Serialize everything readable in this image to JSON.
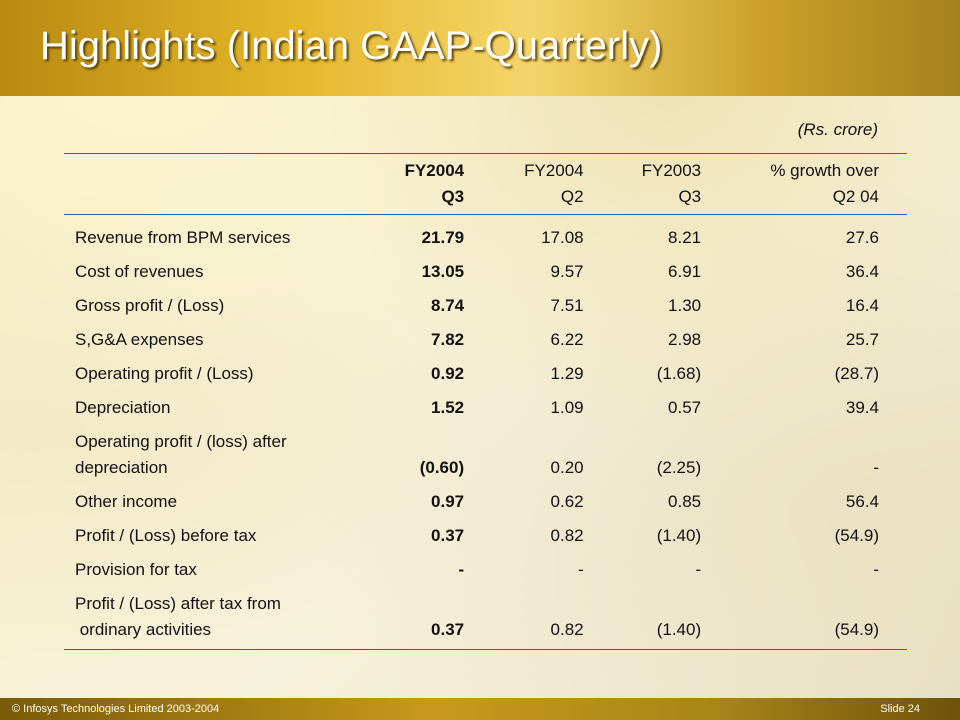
{
  "slide": {
    "title": "Highlights (Indian GAAP-Quarterly)",
    "units": "(Rs. crore)",
    "columns": [
      {
        "line1": "FY2004",
        "line2": "Q3"
      },
      {
        "line1": "FY2004",
        "line2": "Q2"
      },
      {
        "line1": "FY2003",
        "line2": "Q3"
      },
      {
        "line1": "% growth over",
        "line2": "Q2 04"
      }
    ],
    "rows": [
      {
        "label1": "Revenue from BPM services",
        "label2": "",
        "values": [
          "21.79",
          "17.08",
          "8.21",
          "27.6"
        ]
      },
      {
        "label1": "Cost of revenues",
        "label2": "",
        "values": [
          "13.05",
          "9.57",
          "6.91",
          "36.4"
        ]
      },
      {
        "label1": "Gross profit / (Loss)",
        "label2": "",
        "values": [
          "8.74",
          "7.51",
          "1.30",
          "16.4"
        ]
      },
      {
        "label1": "S,G&A expenses",
        "label2": "",
        "values": [
          "7.82",
          "6.22",
          "2.98",
          "25.7"
        ]
      },
      {
        "label1": "Operating profit / (Loss)",
        "label2": "",
        "values": [
          "0.92",
          "1.29",
          "(1.68)",
          "(28.7)"
        ]
      },
      {
        "label1": "Depreciation",
        "label2": "",
        "values": [
          "1.52",
          "1.09",
          "0.57",
          "39.4"
        ]
      },
      {
        "label1": "Operating profit / (loss) after",
        "label2": "depreciation",
        "values": [
          "(0.60)",
          "0.20",
          "(2.25)",
          "-"
        ]
      },
      {
        "label1": "Other income",
        "label2": "",
        "values": [
          "0.97",
          "0.62",
          "0.85",
          "56.4"
        ]
      },
      {
        "label1": "Profit / (Loss) before tax",
        "label2": "",
        "values": [
          "0.37",
          "0.82",
          "(1.40)",
          "(54.9)"
        ]
      },
      {
        "label1": "Provision for tax",
        "label2": "",
        "values": [
          "-",
          "-",
          "-",
          "-"
        ]
      },
      {
        "label1": "Profit / (Loss) after tax from",
        "label2": " ordinary activities",
        "values": [
          "0.37",
          "0.82",
          "(1.40)",
          "(54.9)"
        ]
      }
    ],
    "footer_left": "© Infosys Technologies Limited 2003-2004",
    "footer_right": "Slide 24"
  }
}
